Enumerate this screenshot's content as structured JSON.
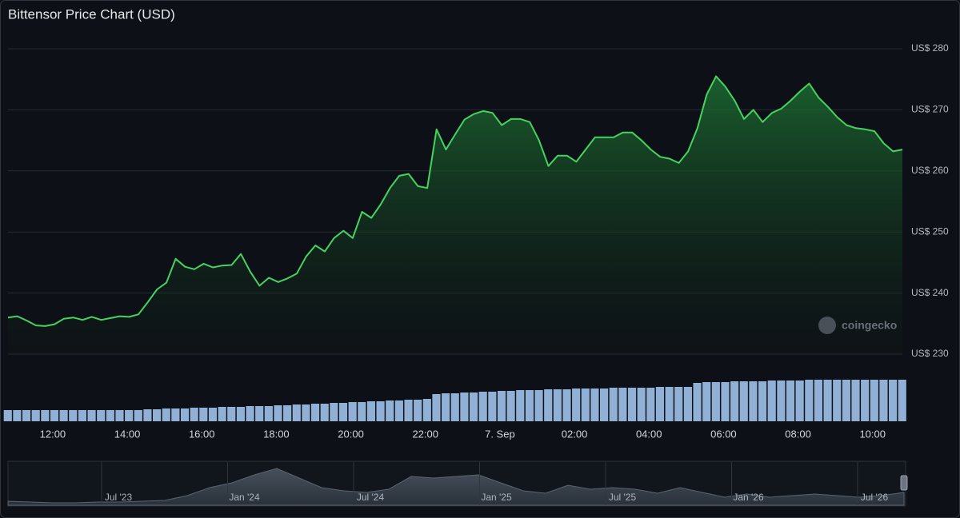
{
  "chart_data": {
    "type": "area",
    "title": "Bittensor Price Chart (USD)",
    "color": "#45d35f",
    "volume_color": "#9fc3ea",
    "grid": true,
    "watermark": "coingecko",
    "xlim": [
      0,
      96
    ],
    "xticks": [
      {
        "value": 4.8,
        "label": "12:00"
      },
      {
        "value": 12.8,
        "label": "14:00"
      },
      {
        "value": 20.8,
        "label": "16:00"
      },
      {
        "value": 28.8,
        "label": "18:00"
      },
      {
        "value": 36.8,
        "label": "20:00"
      },
      {
        "value": 44.8,
        "label": "22:00"
      },
      {
        "value": 52.8,
        "label": "7. Sep"
      },
      {
        "value": 60.8,
        "label": "02:00"
      },
      {
        "value": 68.8,
        "label": "04:00"
      },
      {
        "value": 76.8,
        "label": "06:00"
      },
      {
        "value": 84.8,
        "label": "08:00"
      },
      {
        "value": 92.8,
        "label": "10:00"
      }
    ],
    "ylim": [
      230,
      280
    ],
    "yticks": [
      {
        "value": 230,
        "label": "US$ 230"
      },
      {
        "value": 240,
        "label": "US$ 240"
      },
      {
        "value": 250,
        "label": "US$ 250"
      },
      {
        "value": 260,
        "label": "US$ 260"
      },
      {
        "value": 270,
        "label": "US$ 270"
      },
      {
        "value": 280,
        "label": "US$ 280"
      }
    ],
    "values": [
      236.0,
      236.2,
      235.5,
      234.7,
      234.6,
      234.9,
      235.8,
      236.0,
      235.6,
      236.1,
      235.6,
      235.9,
      236.2,
      236.1,
      236.5,
      238.5,
      240.6,
      241.7,
      245.6,
      244.3,
      243.9,
      244.8,
      244.2,
      244.5,
      244.6,
      246.4,
      243.5,
      241.2,
      242.5,
      241.8,
      242.4,
      243.2,
      246.0,
      247.8,
      246.8,
      249.0,
      250.2,
      249.0,
      253.3,
      252.3,
      254.5,
      257.2,
      259.2,
      259.5,
      257.5,
      257.2,
      266.8,
      263.5,
      266.0,
      268.4,
      269.3,
      269.8,
      269.5,
      267.5,
      268.5,
      268.5,
      268.0,
      265.0,
      260.8,
      262.5,
      262.5,
      261.5,
      263.5,
      265.5,
      265.5,
      265.5,
      266.3,
      266.3,
      265.0,
      263.5,
      262.3,
      262.0,
      261.3,
      263.2,
      267.0,
      272.5,
      275.5,
      273.8,
      271.5,
      268.5,
      270.0,
      268.0,
      269.5,
      270.2,
      271.5,
      273.0,
      274.3,
      272.0,
      270.5,
      268.8,
      267.5,
      267.0,
      266.8,
      266.5,
      264.5,
      263.2,
      263.5
    ],
    "volume": [
      14,
      14,
      14,
      14,
      14,
      14,
      14,
      14,
      14,
      14,
      14,
      14,
      14,
      14,
      14,
      15,
      15,
      16,
      16,
      16,
      17,
      17,
      17,
      18,
      18,
      18,
      19,
      19,
      19,
      20,
      20,
      21,
      21,
      22,
      22,
      23,
      23,
      24,
      24,
      25,
      25,
      26,
      26,
      27,
      27,
      28,
      34,
      35,
      35,
      36,
      36,
      37,
      37,
      38,
      38,
      39,
      39,
      39,
      40,
      40,
      40,
      41,
      41,
      41,
      41,
      42,
      42,
      42,
      42,
      42,
      43,
      43,
      43,
      43,
      48,
      49,
      49,
      49,
      50,
      50,
      50,
      50,
      51,
      51,
      51,
      51,
      52,
      52,
      52,
      52,
      52,
      52,
      52,
      52,
      52,
      52,
      52
    ],
    "navigator": {
      "labels": [
        "Jul '23",
        "Jan '24",
        "Jul '24",
        "Jan '25",
        "Jul '25",
        "Jan '26",
        "Jul '26"
      ],
      "values": [
        5,
        4,
        3,
        3,
        4,
        4,
        5,
        6,
        12,
        22,
        28,
        38,
        46,
        34,
        22,
        18,
        16,
        20,
        36,
        34,
        36,
        38,
        28,
        18,
        15,
        25,
        20,
        22,
        20,
        15,
        22,
        16,
        10,
        14,
        10,
        12,
        14,
        12,
        10,
        12,
        16
      ]
    }
  }
}
